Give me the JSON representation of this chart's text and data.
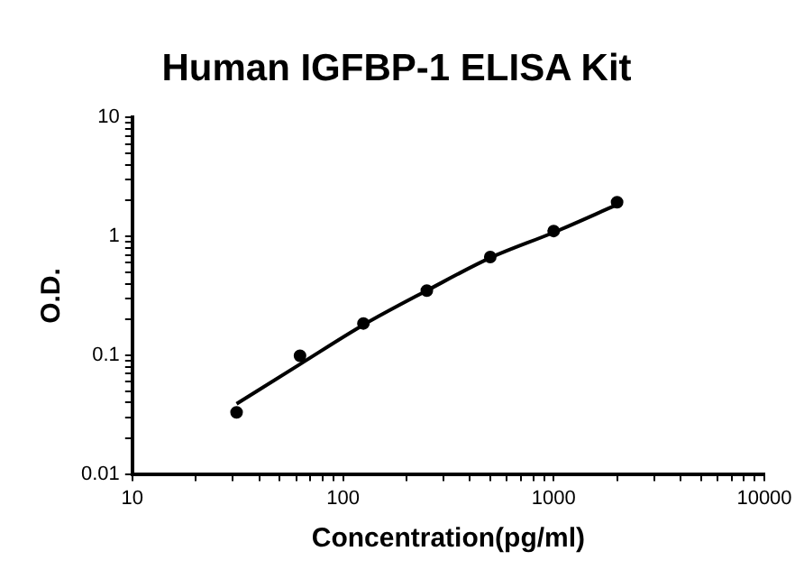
{
  "chart_data": {
    "type": "scatter",
    "title": "Human IGFBP-1 ELISA Kit",
    "xlabel": "Concentration(pg/ml)",
    "ylabel": "O.D.",
    "log": "xy",
    "grid": false,
    "legend": false,
    "marker": "circle",
    "x": [
      31.25,
      62.5,
      125,
      250,
      500,
      1000,
      2000
    ],
    "series": [
      {
        "color": "#000000",
        "values": [
          0.033,
          0.099,
          0.185,
          0.35,
          0.67,
          1.11,
          1.94
        ]
      },
      {
        "type": "line",
        "color": "#000000",
        "marker": "none",
        "x": [
          31.25,
          62.5,
          125,
          250,
          500,
          1000,
          2000
        ],
        "values": [
          0.039,
          0.084,
          0.18,
          0.35,
          0.66,
          1.08,
          1.85
        ]
      }
    ],
    "xlim": [
      10,
      10000
    ],
    "ylim": [
      0.01,
      10
    ],
    "xticks": [
      10,
      {
        "value": 20,
        "label": null
      },
      {
        "value": 30,
        "label": null
      },
      {
        "value": 40,
        "label": null
      },
      {
        "value": 50,
        "label": null
      },
      {
        "value": 60,
        "label": null
      },
      {
        "value": 70,
        "label": null
      },
      {
        "value": 80,
        "label": null
      },
      {
        "value": 90,
        "label": null
      },
      100,
      {
        "value": 200,
        "label": null
      },
      {
        "value": 300,
        "label": null
      },
      {
        "value": 400,
        "label": null
      },
      {
        "value": 500,
        "label": null
      },
      {
        "value": 600,
        "label": null
      },
      {
        "value": 700,
        "label": null
      },
      {
        "value": 800,
        "label": null
      },
      {
        "value": 900,
        "label": null
      },
      1000,
      {
        "value": 2000,
        "label": null
      },
      {
        "value": 3000,
        "label": null
      },
      {
        "value": 4000,
        "label": null
      },
      {
        "value": 5000,
        "label": null
      },
      {
        "value": 6000,
        "label": null
      },
      {
        "value": 7000,
        "label": null
      },
      {
        "value": 8000,
        "label": null
      },
      {
        "value": 9000,
        "label": null
      },
      10000
    ],
    "yticks": [
      0.01,
      {
        "value": 0.02,
        "label": null
      },
      {
        "value": 0.03,
        "label": null
      },
      {
        "value": 0.04,
        "label": null
      },
      {
        "value": 0.05,
        "label": null
      },
      {
        "value": 0.06,
        "label": null
      },
      {
        "value": 0.07,
        "label": null
      },
      {
        "value": 0.08,
        "label": null
      },
      {
        "value": 0.09,
        "label": null
      },
      0.1,
      {
        "value": 0.2,
        "label": null
      },
      {
        "value": 0.3,
        "label": null
      },
      {
        "value": 0.4,
        "label": null
      },
      {
        "value": 0.5,
        "label": null
      },
      {
        "value": 0.6,
        "label": null
      },
      {
        "value": 0.7,
        "label": null
      },
      {
        "value": 0.8,
        "label": null
      },
      {
        "value": 0.9,
        "label": null
      },
      1,
      {
        "value": 2,
        "label": null
      },
      {
        "value": 3,
        "label": null
      },
      {
        "value": 4,
        "label": null
      },
      {
        "value": 5,
        "label": null
      },
      {
        "value": 6,
        "label": null
      },
      {
        "value": 7,
        "label": null
      },
      {
        "value": 8,
        "label": null
      },
      {
        "value": 9,
        "label": null
      },
      10
    ]
  }
}
